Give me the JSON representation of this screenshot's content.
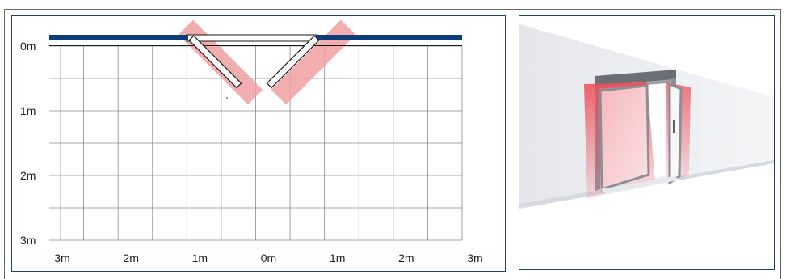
{
  "diagram": {
    "y_axis_labels": [
      "0m",
      "1m",
      "2m",
      "3m"
    ],
    "x_axis_labels": [
      "3m",
      "2m",
      "1m",
      "0m",
      "1m",
      "2m",
      "3m"
    ],
    "colors": {
      "frame": "#1f3f72",
      "wall": "#0b3d7a",
      "grid": "#8a8a8a",
      "sensor_zone": "#f0a0a0",
      "door_leaf": "#ffffff"
    }
  },
  "illustration": {
    "subject": "double-swing-door-with-sensor-zones-3d"
  }
}
